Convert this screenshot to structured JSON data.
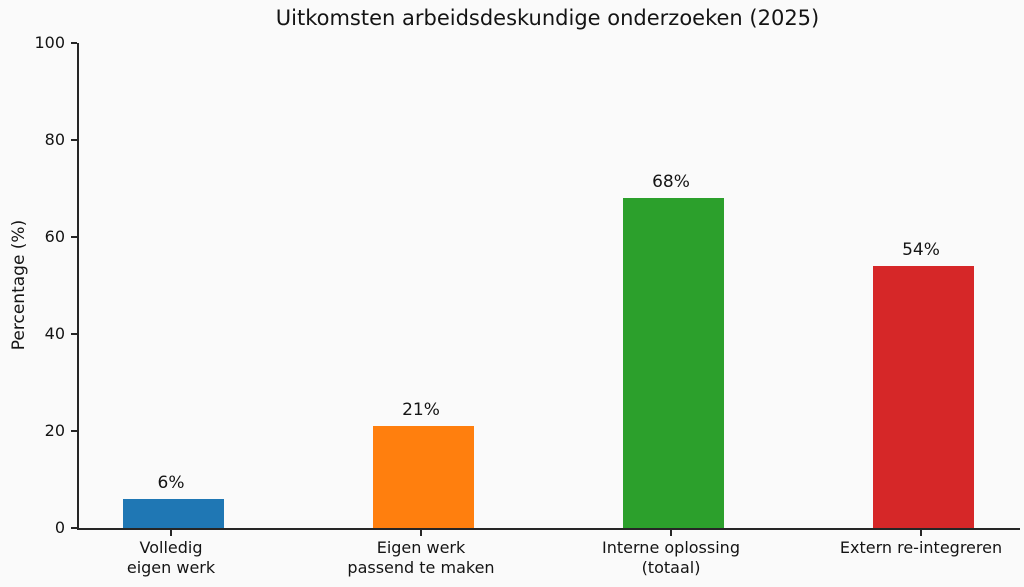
{
  "chart_data": {
    "type": "bar",
    "title": "Uitkomsten arbeidsdeskundige onderzoeken (2025)",
    "xlabel": "",
    "ylabel": "Percentage (%)",
    "ylim": [
      0,
      100
    ],
    "yticks": [
      0,
      20,
      40,
      60,
      80,
      100
    ],
    "grid": false,
    "legend_position": "none",
    "categories": [
      "Volledig\neigen werk",
      "Eigen werk\npassend te maken",
      "Interne oplossing\n(totaal)",
      "Extern re-integreren"
    ],
    "values": [
      6,
      21,
      68,
      54
    ],
    "value_labels": [
      "6%",
      "21%",
      "68%",
      "54%"
    ],
    "bar_colors": [
      "#1f77b4",
      "#ff7f0e",
      "#2ca02c",
      "#d62728"
    ],
    "colors": {
      "background": "#fafafa",
      "axis": "#262626",
      "text": "#141414"
    }
  }
}
